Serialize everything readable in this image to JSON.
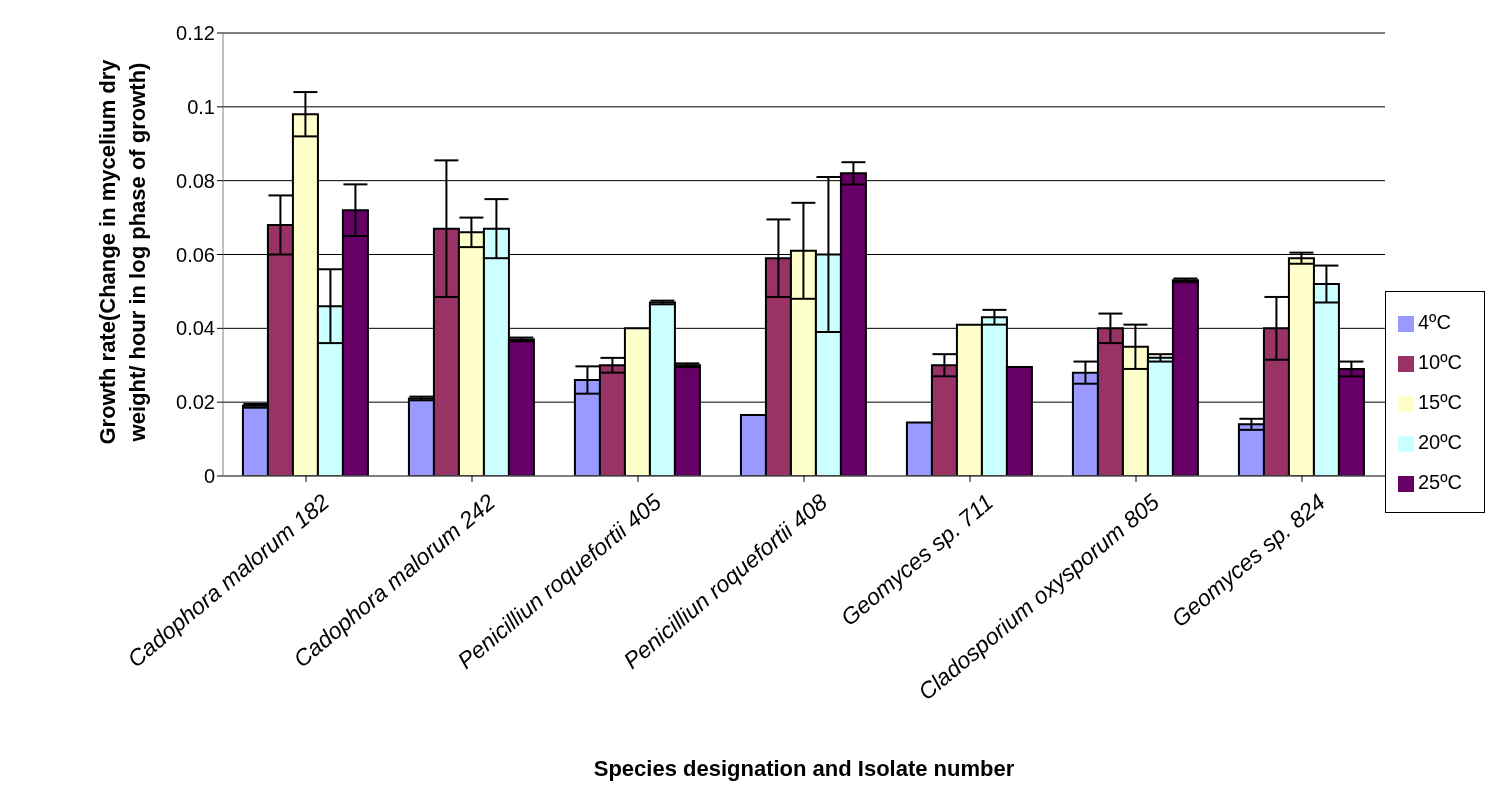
{
  "chart_data": {
    "type": "bar",
    "xlabel": "Species designation and Isolate number",
    "ylabel": "Growth rate(Change in mycelium dry weight/ hour in log phase of growth)",
    "categories": [
      "Cadophora malorum 182",
      "Cadophora malorum 242",
      "Penicilliun roquefortii 405",
      "Penicilliun roquefortii 408",
      "Geomyces sp. 711",
      "Cladosporium oxysporum 805",
      "Geomyces sp. 824"
    ],
    "series": [
      {
        "name": "4ºC",
        "color": "#9999ff",
        "values": [
          0.019,
          0.021,
          0.026,
          0.0165,
          0.0145,
          0.028,
          0.014
        ],
        "errors": [
          0.0005,
          0.0005,
          0.0037,
          null,
          null,
          0.003,
          0.0015
        ]
      },
      {
        "name": "10ºC",
        "color": "#993366",
        "values": [
          0.068,
          0.067,
          0.03,
          0.059,
          0.03,
          0.04,
          0.04
        ],
        "errors": [
          0.008,
          0.0185,
          0.002,
          0.0105,
          0.003,
          0.004,
          0.0085
        ]
      },
      {
        "name": "15ºC",
        "color": "#ffffcc",
        "values": [
          0.098,
          0.066,
          0.04,
          0.061,
          0.041,
          0.035,
          0.059
        ],
        "errors": [
          0.006,
          0.004,
          null,
          0.013,
          null,
          0.006,
          0.0015
        ]
      },
      {
        "name": "20ºC",
        "color": "#ccffff",
        "values": [
          0.046,
          0.067,
          0.047,
          0.06,
          0.043,
          0.032,
          0.052
        ],
        "errors": [
          0.01,
          0.008,
          0.0005,
          0.021,
          0.002,
          0.001,
          0.005
        ]
      },
      {
        "name": "25ºC",
        "color": "#660066",
        "values": [
          0.072,
          0.037,
          0.03,
          0.082,
          0.0295,
          0.053,
          0.029
        ],
        "errors": [
          0.007,
          0.0005,
          0.0005,
          0.003,
          null,
          0.0005,
          0.002
        ]
      }
    ],
    "ylim": [
      0,
      0.12
    ],
    "yticks": [
      0,
      0.02,
      0.04,
      0.06,
      0.08,
      0.1,
      0.12
    ],
    "grid": "y",
    "legend": "right"
  }
}
